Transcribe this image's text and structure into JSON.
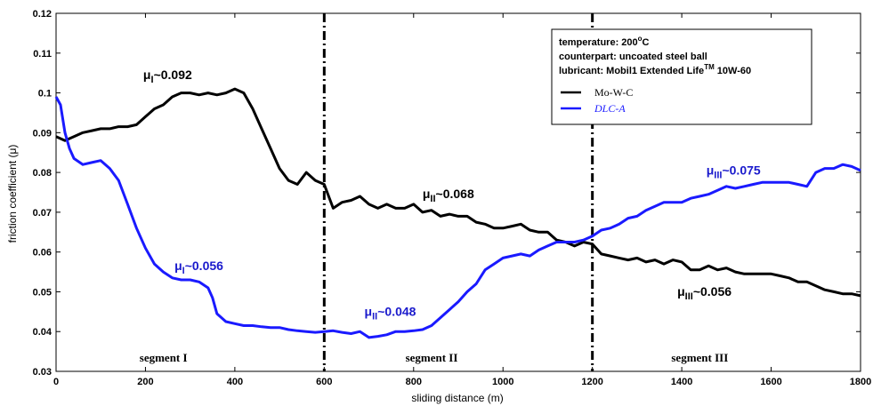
{
  "chart_data": {
    "type": "line",
    "xlabel": "sliding distance (m)",
    "ylabel": "friction coefficient (μ)",
    "xlim": [
      0,
      1800
    ],
    "ylim": [
      0.03,
      0.12
    ],
    "x_ticks": [
      0,
      200,
      400,
      600,
      800,
      1000,
      1200,
      1400,
      1600,
      1800
    ],
    "y_ticks": [
      0.03,
      0.04,
      0.05,
      0.06,
      0.07,
      0.08,
      0.09,
      0.1,
      0.11,
      0.12
    ],
    "grid": false,
    "vertical_lines": [
      600,
      1200
    ],
    "legend": {
      "placement": "top-right",
      "info_lines": [
        {
          "text": "temperature: 200",
          "sup": "o",
          "tail": "C"
        },
        {
          "text": "counterpart: uncoated steel ball",
          "sup": "",
          "tail": ""
        },
        {
          "text": "lubricant: Mobil1 Extended Life",
          "sup": "TM",
          "tail": " 10W-60"
        }
      ]
    },
    "series": [
      {
        "name": "Mo-W-C",
        "color": "#000000",
        "x": [
          0,
          20,
          40,
          60,
          80,
          100,
          120,
          140,
          160,
          180,
          200,
          220,
          240,
          260,
          280,
          300,
          320,
          340,
          360,
          380,
          400,
          420,
          440,
          460,
          480,
          500,
          520,
          540,
          560,
          580,
          600,
          620,
          640,
          660,
          680,
          700,
          720,
          740,
          760,
          780,
          800,
          820,
          840,
          860,
          880,
          900,
          920,
          940,
          960,
          980,
          1000,
          1020,
          1040,
          1060,
          1080,
          1100,
          1120,
          1140,
          1160,
          1180,
          1200,
          1220,
          1240,
          1260,
          1280,
          1300,
          1320,
          1340,
          1360,
          1380,
          1400,
          1420,
          1440,
          1460,
          1480,
          1500,
          1520,
          1540,
          1560,
          1580,
          1600,
          1620,
          1640,
          1660,
          1680,
          1700,
          1720,
          1740,
          1760,
          1780,
          1800
        ],
        "values": [
          0.089,
          0.088,
          0.089,
          0.09,
          0.0905,
          0.091,
          0.091,
          0.0915,
          0.0915,
          0.092,
          0.094,
          0.096,
          0.097,
          0.099,
          0.1,
          0.1,
          0.0995,
          0.1,
          0.0995,
          0.1,
          0.101,
          0.1,
          0.096,
          0.091,
          0.086,
          0.081,
          0.078,
          0.077,
          0.08,
          0.078,
          0.077,
          0.071,
          0.0725,
          0.073,
          0.074,
          0.072,
          0.071,
          0.072,
          0.071,
          0.071,
          0.072,
          0.07,
          0.0705,
          0.069,
          0.0695,
          0.069,
          0.069,
          0.0675,
          0.067,
          0.066,
          0.066,
          0.0665,
          0.067,
          0.0655,
          0.065,
          0.065,
          0.063,
          0.0625,
          0.0615,
          0.0625,
          0.062,
          0.0595,
          0.059,
          0.0585,
          0.058,
          0.0585,
          0.0575,
          0.058,
          0.057,
          0.058,
          0.0575,
          0.0555,
          0.0555,
          0.0565,
          0.0555,
          0.056,
          0.055,
          0.0545,
          0.0545,
          0.0545,
          0.0545,
          0.054,
          0.0535,
          0.0525,
          0.0525,
          0.0515,
          0.0505,
          0.05,
          0.0495,
          0.0495,
          0.049
        ]
      },
      {
        "name": "DLC-A",
        "color": "#1a1aff",
        "x": [
          0,
          10,
          20,
          30,
          40,
          60,
          80,
          100,
          120,
          140,
          160,
          180,
          200,
          220,
          240,
          260,
          280,
          300,
          320,
          340,
          350,
          360,
          380,
          400,
          420,
          440,
          460,
          480,
          500,
          520,
          540,
          560,
          580,
          600,
          620,
          640,
          660,
          680,
          700,
          720,
          740,
          760,
          780,
          800,
          820,
          840,
          860,
          880,
          900,
          920,
          940,
          960,
          980,
          1000,
          1020,
          1040,
          1060,
          1080,
          1100,
          1120,
          1140,
          1160,
          1180,
          1200,
          1220,
          1240,
          1260,
          1280,
          1300,
          1320,
          1340,
          1360,
          1380,
          1400,
          1420,
          1440,
          1460,
          1480,
          1500,
          1520,
          1540,
          1560,
          1580,
          1600,
          1620,
          1640,
          1660,
          1680,
          1700,
          1720,
          1740,
          1760,
          1780,
          1800
        ],
        "values": [
          0.099,
          0.097,
          0.09,
          0.086,
          0.0835,
          0.082,
          0.0825,
          0.083,
          0.081,
          0.078,
          0.072,
          0.066,
          0.061,
          0.057,
          0.055,
          0.0535,
          0.053,
          0.053,
          0.0525,
          0.051,
          0.0485,
          0.0445,
          0.0425,
          0.042,
          0.0415,
          0.0415,
          0.0412,
          0.041,
          0.041,
          0.0405,
          0.0402,
          0.04,
          0.0398,
          0.04,
          0.0402,
          0.0398,
          0.0395,
          0.04,
          0.0385,
          0.0388,
          0.0392,
          0.04,
          0.04,
          0.0402,
          0.0405,
          0.0415,
          0.0435,
          0.0455,
          0.0475,
          0.05,
          0.052,
          0.0555,
          0.057,
          0.0585,
          0.059,
          0.0595,
          0.059,
          0.0605,
          0.0615,
          0.0625,
          0.0625,
          0.0625,
          0.063,
          0.064,
          0.0655,
          0.066,
          0.067,
          0.0685,
          0.069,
          0.0705,
          0.0715,
          0.0725,
          0.0725,
          0.0725,
          0.0735,
          0.074,
          0.0745,
          0.0755,
          0.0765,
          0.076,
          0.0765,
          0.077,
          0.0775,
          0.0775,
          0.0775,
          0.0775,
          0.077,
          0.0765,
          0.08,
          0.081,
          0.081,
          0.082,
          0.0815,
          0.0805
        ]
      }
    ],
    "annotations": [
      {
        "id": "mw-seg1",
        "prefix": "μ",
        "sub": "I",
        "suffix": "~0.092",
        "color": "#000000",
        "x": 195,
        "y": 0.1035
      },
      {
        "id": "mw-seg2",
        "prefix": "μ",
        "sub": "II",
        "suffix": "~0.068",
        "color": "#000000",
        "x": 820,
        "y": 0.0735
      },
      {
        "id": "mw-seg3",
        "prefix": "μ",
        "sub": "III",
        "suffix": "~0.056",
        "color": "#000000",
        "x": 1390,
        "y": 0.049
      },
      {
        "id": "dlc-seg1",
        "prefix": "μ",
        "sub": "I",
        "suffix": "~0.056",
        "color": "#1a1acc",
        "x": 265,
        "y": 0.0555
      },
      {
        "id": "dlc-seg2",
        "prefix": "μ",
        "sub": "II",
        "suffix": "~0.048",
        "color": "#1a1acc",
        "x": 690,
        "y": 0.044
      },
      {
        "id": "dlc-seg3",
        "prefix": "μ",
        "sub": "III",
        "suffix": "~0.075",
        "color": "#1a1acc",
        "x": 1455,
        "y": 0.0795
      }
    ],
    "segment_labels": [
      {
        "text": "segment I",
        "x": 300
      },
      {
        "text": "segment II",
        "x": 900
      },
      {
        "text": "segment III",
        "x": 1500
      }
    ]
  }
}
